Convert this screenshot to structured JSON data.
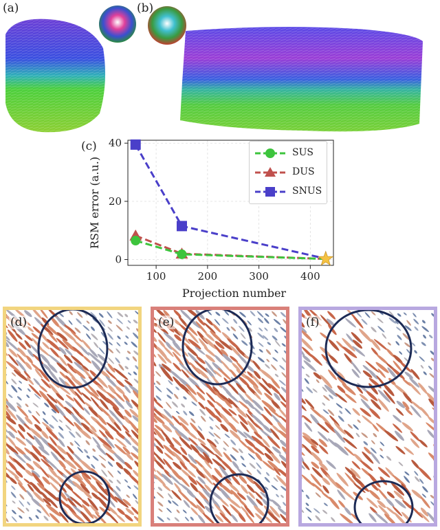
{
  "panels": {
    "a": {
      "label": "(a)"
    },
    "b": {
      "label": "(b)"
    },
    "c": {
      "label": "(c)"
    },
    "d": {
      "label": "(d)",
      "border_color": "#f2d57f"
    },
    "e": {
      "label": "(e)",
      "border_color": "#d9807a"
    },
    "f": {
      "label": "(f)",
      "border_color": "#b8a8e0"
    }
  },
  "chart_data": {
    "type": "line",
    "xlabel": "Projection number",
    "ylabel": "RSM error (a.u.)",
    "xlim": [
      45,
      445
    ],
    "ylim": [
      -2,
      41
    ],
    "xticks": [
      100,
      200,
      300,
      400
    ],
    "yticks": [
      0,
      20,
      40
    ],
    "grid": true,
    "legend_position": "top-right",
    "series": [
      {
        "name": "SUS",
        "color": "#3dc43d",
        "marker": "circle",
        "x": [
          60,
          150,
          430
        ],
        "y": [
          6.5,
          1.8,
          0.2
        ]
      },
      {
        "name": "DUS",
        "color": "#c0504d",
        "marker": "triangle",
        "x": [
          60,
          150,
          430
        ],
        "y": [
          8.2,
          2.0,
          0.2
        ]
      },
      {
        "name": "SNUS",
        "color": "#4a3fc9",
        "marker": "square",
        "x": [
          60,
          150,
          430
        ],
        "y": [
          39.5,
          11.5,
          0.3
        ]
      }
    ],
    "reference_point": {
      "marker": "star",
      "color": "#f5c242",
      "x": 430,
      "y": 0.2
    }
  }
}
